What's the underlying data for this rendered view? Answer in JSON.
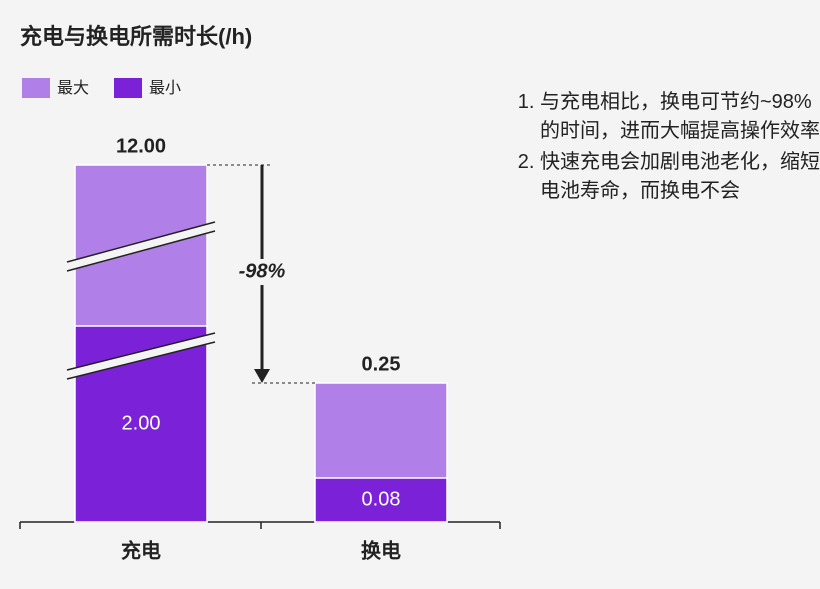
{
  "chart_data": {
    "type": "bar",
    "title": "充电与换电所需时长(/h)",
    "categories": [
      "充电",
      "换电"
    ],
    "series": [
      {
        "name": "最大",
        "color": "#b07fe8",
        "values": [
          12,
          0.25
        ],
        "value_labels": [
          "12.00",
          "0.25"
        ]
      },
      {
        "name": "最小",
        "color": "#7b22d8",
        "values": [
          2,
          0.08
        ],
        "value_labels": [
          "2.00",
          "0.08"
        ]
      }
    ],
    "annotation": "-98%",
    "notes": [
      "与充电相比，换电可节约~98%的时间，进而大幅提高操作效率",
      "快速充电会加剧电池老化，缩短电池寿命，而换电不会"
    ]
  }
}
